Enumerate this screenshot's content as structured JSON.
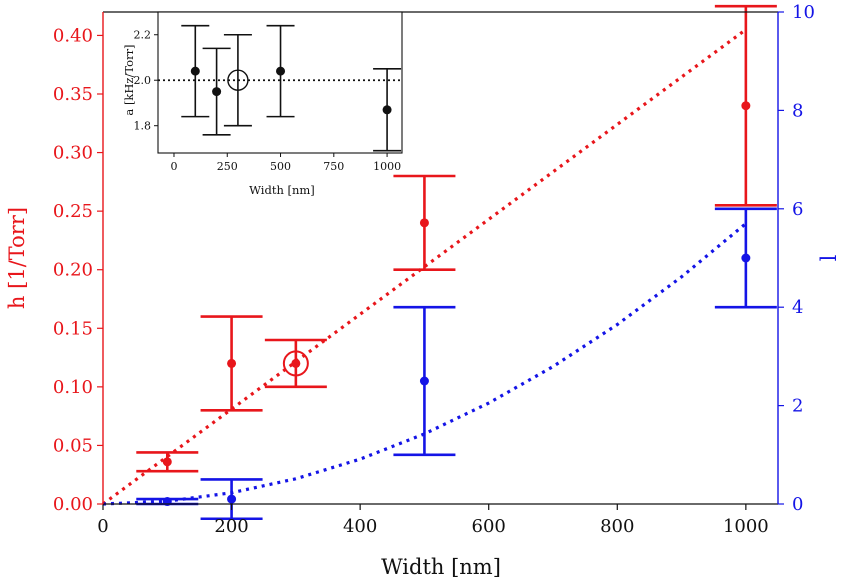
{
  "chart_data": [
    {
      "type": "scatter",
      "xlabel": "Width [nm]",
      "ylabel": "h [1/Torr]",
      "ylabel_right": "l",
      "xlim": [
        0,
        1050
      ],
      "ylim": [
        0,
        0.42
      ],
      "ylim_right": [
        0,
        10
      ],
      "x_ticks": [
        "0",
        "200",
        "400",
        "600",
        "800",
        "1000"
      ],
      "y_ticks": [
        "0.00",
        "0.05",
        "0.10",
        "0.15",
        "0.20",
        "0.25",
        "0.30",
        "0.35",
        "0.40"
      ],
      "y_ticks_right": [
        "0",
        "2",
        "4",
        "6",
        "8",
        "10"
      ],
      "grid": false,
      "colors": {
        "left": "#e8161b",
        "right": "#1414e6"
      },
      "series": [
        {
          "axis": "left",
          "color": "#e8161b",
          "points": [
            {
              "x": 100,
              "y": 0.036,
              "err": 0.008,
              "marker": "dot"
            },
            {
              "x": 200,
              "y": 0.12,
              "err": 0.04,
              "marker": "dot"
            },
            {
              "x": 300,
              "y": 0.12,
              "err": 0.02,
              "marker": "open-circle"
            },
            {
              "x": 500,
              "y": 0.24,
              "err": 0.04,
              "marker": "dot"
            },
            {
              "x": 1000,
              "y": 0.34,
              "err": 0.085,
              "marker": "dot"
            }
          ],
          "fit": {
            "style": "dotted",
            "x": [
              0,
              100,
              200,
              300,
              400,
              500,
              600,
              700,
              800,
              900,
              1000
            ],
            "y": [
              0,
              0.0405,
              0.081,
              0.1215,
              0.162,
              0.2025,
              0.243,
              0.2835,
              0.324,
              0.3645,
              0.405
            ]
          }
        },
        {
          "axis": "right",
          "color": "#1414e6",
          "points": [
            {
              "x": 100,
              "y": 0.05,
              "err": 0.05
            },
            {
              "x": 200,
              "y": 0.1,
              "err": 0.4
            },
            {
              "x": 500,
              "y": 2.5,
              "err": 1.5
            },
            {
              "x": 1000,
              "y": 5.0,
              "err": 1.0
            }
          ],
          "fit": {
            "style": "dotted",
            "x": [
              0,
              100,
              200,
              300,
              400,
              500,
              600,
              700,
              800,
              900,
              1000
            ],
            "y": [
              0,
              0.057,
              0.228,
              0.513,
              0.912,
              1.425,
              2.052,
              2.793,
              3.648,
              4.617,
              5.7
            ]
          }
        }
      ]
    },
    {
      "type": "scatter",
      "inset": true,
      "xlabel": "Width [nm]",
      "ylabel": "a [kHz/Torr]",
      "xlim": [
        -75,
        1070
      ],
      "ylim": [
        1.68,
        2.3
      ],
      "x_ticks": [
        "0",
        "250",
        "500",
        "750",
        "1000"
      ],
      "y_ticks": [
        "1.8",
        "2.0",
        "2.2"
      ],
      "reference_line": {
        "y": 2.0,
        "style": "dotted"
      },
      "color": "#111111",
      "points": [
        {
          "x": 100,
          "y": 2.04,
          "err": 0.2,
          "marker": "dot"
        },
        {
          "x": 200,
          "y": 1.95,
          "err": 0.19,
          "marker": "dot"
        },
        {
          "x": 300,
          "y": 2.0,
          "err": 0.2,
          "marker": "open-circle"
        },
        {
          "x": 500,
          "y": 2.04,
          "err": 0.2,
          "marker": "dot"
        },
        {
          "x": 1000,
          "y": 1.87,
          "err": 0.18,
          "marker": "dot"
        }
      ]
    }
  ]
}
